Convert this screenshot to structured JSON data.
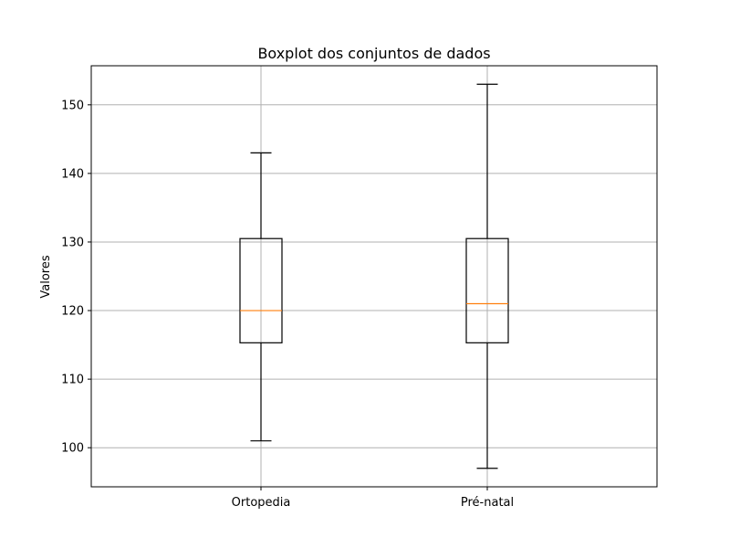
{
  "chart_data": {
    "type": "boxplot",
    "title": "Boxplot dos conjuntos de dados",
    "xlabel": "",
    "ylabel": "Valores",
    "categories": [
      "Ortopedia",
      "Pré-natal"
    ],
    "boxes": [
      {
        "category": "Ortopedia",
        "whisker_low": 101,
        "q1": 115.3,
        "median": 120,
        "q3": 130.5,
        "whisker_high": 143
      },
      {
        "category": "Pré-natal",
        "whisker_low": 97,
        "q1": 115.3,
        "median": 121,
        "q3": 130.5,
        "whisker_high": 153
      }
    ],
    "ylim": [
      94.3,
      155.7
    ],
    "yticks": [
      100,
      110,
      120,
      130,
      140,
      150
    ],
    "grid": true,
    "colors": {
      "box": "#000000",
      "median": "#ff7f0e",
      "grid": "#b0b0b0"
    }
  }
}
